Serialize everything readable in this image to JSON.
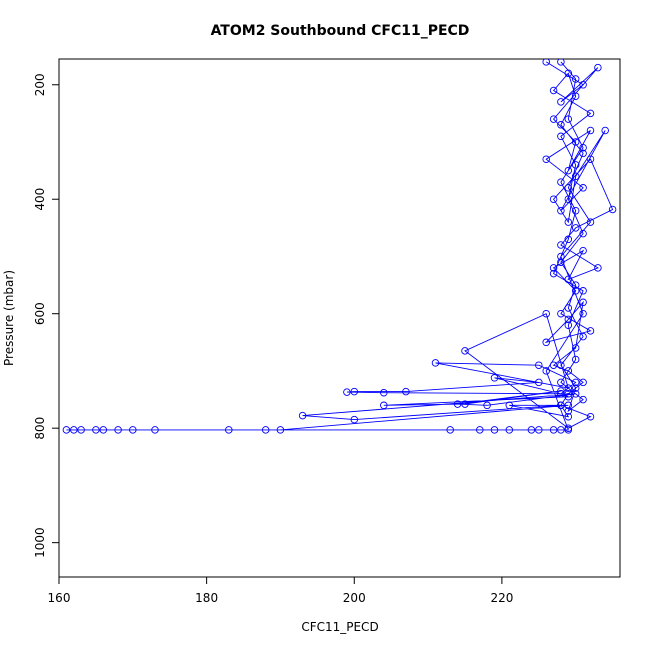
{
  "chart_data": {
    "type": "line",
    "title": "ATOM2 Southbound CFC11_PECD",
    "xlabel": "CFC11_PECD",
    "ylabel": "Pressure (mbar)",
    "xlim": [
      160,
      236
    ],
    "ylim": [
      1060,
      155
    ],
    "y_reversed": true,
    "x_ticks": [
      160,
      180,
      200,
      220
    ],
    "y_ticks": [
      200,
      400,
      600,
      800,
      1000
    ],
    "grid": false,
    "legend": "none",
    "marker": "open-circle",
    "series": [
      {
        "color": "#0000ff",
        "points": [
          [
            226,
            160
          ],
          [
            231,
            200
          ],
          [
            228,
            230
          ],
          [
            233,
            170
          ],
          [
            227,
            260
          ],
          [
            230,
            300
          ],
          [
            229,
            350
          ],
          [
            232,
            280
          ],
          [
            226,
            330
          ],
          [
            231,
            380
          ],
          [
            228,
            420
          ],
          [
            234,
            280
          ],
          [
            230,
            360
          ],
          [
            229,
            440
          ],
          [
            227,
            400
          ],
          [
            232,
            330
          ],
          [
            235,
            418
          ],
          [
            230,
            450
          ],
          [
            228,
            480
          ],
          [
            233,
            520
          ],
          [
            229,
            540
          ],
          [
            231,
            490
          ],
          [
            227,
            520
          ],
          [
            230,
            560
          ],
          [
            228,
            600
          ],
          [
            232,
            630
          ],
          [
            226,
            650
          ],
          [
            229,
            610
          ],
          [
            231,
            580
          ],
          [
            230,
            660
          ],
          [
            227,
            690
          ],
          [
            229,
            700
          ],
          [
            231,
            720
          ],
          [
            229,
            740
          ],
          [
            228,
            760
          ],
          [
            232,
            780
          ],
          [
            229,
            800
          ],
          [
            215,
            665
          ],
          [
            226,
            600
          ],
          [
            229,
            730
          ],
          [
            211,
            686
          ],
          [
            225,
            690
          ],
          [
            230,
            720
          ],
          [
            228,
            740
          ],
          [
            219,
            712
          ],
          [
            225,
            720
          ],
          [
            207,
            736
          ],
          [
            200,
            736
          ],
          [
            199,
            737
          ],
          [
            204,
            738
          ],
          [
            228,
            740
          ],
          [
            229,
            745
          ],
          [
            204,
            760
          ],
          [
            215,
            758
          ],
          [
            228,
            735
          ],
          [
            214,
            758
          ],
          [
            218,
            760
          ],
          [
            230,
            740
          ],
          [
            193,
            778
          ],
          [
            200,
            785
          ],
          [
            228,
            760
          ],
          [
            229,
            780
          ],
          [
            221,
            760
          ],
          [
            229,
            760
          ],
          [
            190,
            803
          ],
          [
            188,
            803
          ],
          [
            183,
            803
          ],
          [
            173,
            803
          ],
          [
            170,
            803
          ],
          [
            168,
            803
          ],
          [
            166,
            803
          ],
          [
            165,
            803
          ],
          [
            163,
            803
          ],
          [
            162,
            803
          ],
          [
            161,
            803
          ],
          [
            213,
            803
          ],
          [
            217,
            803
          ],
          [
            219,
            803
          ],
          [
            221,
            803
          ],
          [
            224,
            803
          ],
          [
            225,
            803
          ],
          [
            227,
            803
          ],
          [
            228,
            803
          ],
          [
            229,
            803
          ],
          [
            226,
            700
          ],
          [
            231,
            600
          ],
          [
            228,
            500
          ],
          [
            232,
            440
          ],
          [
            229,
            380
          ],
          [
            231,
            320
          ],
          [
            228,
            270
          ],
          [
            230,
            220
          ],
          [
            229,
            180
          ],
          [
            227,
            210
          ],
          [
            232,
            250
          ],
          [
            228,
            290
          ],
          [
            230,
            340
          ],
          [
            229,
            400
          ],
          [
            231,
            460
          ],
          [
            228,
            510
          ],
          [
            230,
            550
          ],
          [
            229,
            590
          ],
          [
            231,
            640
          ],
          [
            228,
            690
          ],
          [
            230,
            730
          ],
          [
            229,
            770
          ],
          [
            231,
            750
          ],
          [
            228,
            720
          ],
          [
            230,
            680
          ],
          [
            229,
            620
          ],
          [
            231,
            560
          ],
          [
            227,
            530
          ],
          [
            229,
            470
          ],
          [
            230,
            420
          ],
          [
            228,
            370
          ],
          [
            231,
            310
          ],
          [
            229,
            260
          ],
          [
            230,
            190
          ],
          [
            228,
            160
          ]
        ]
      }
    ]
  }
}
